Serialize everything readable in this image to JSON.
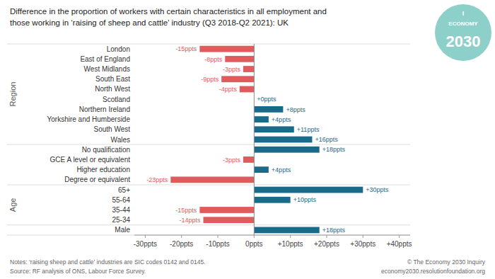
{
  "chart_data": {
    "type": "bar",
    "orientation": "horizontal",
    "title": "Difference in the proportion of workers with certain characteristics in all employment and",
    "subtitle": "those working in ‘raising of sheep and cattle’ industry (Q3 2018-Q2 2021): UK",
    "categories": [
      "London",
      "East of England",
      "West Midlands",
      "South East",
      "North West",
      "Scotland",
      "Northern Ireland",
      "Yorkshire and Humberside",
      "South West",
      "Wales",
      "No qualification",
      "GCE A level or equivalent",
      "Higher education",
      "Degree or equivalent",
      "65+",
      "55-64",
      "35-44",
      "25-34",
      "Male"
    ],
    "values": [
      -15,
      -8,
      -3,
      -9,
      -4,
      0,
      8,
      4,
      11,
      16,
      18,
      -3,
      4,
      -23,
      30,
      10,
      -15,
      -14,
      18
    ],
    "value_labels": [
      "-15ppts",
      "-8ppts",
      "-3ppts",
      "-9ppts",
      "-4ppts",
      "+0ppts",
      "+8ppts",
      "+4ppts",
      "+11ppts",
      "+16ppts",
      "+18ppts",
      "-3ppts",
      "+4ppts",
      "-23ppts",
      "+30ppts",
      "+10ppts",
      "-15ppts",
      "-14ppts",
      "+18ppts"
    ],
    "data_labels": true,
    "colors": [
      "#e05c5c",
      "#e05c5c",
      "#e05c5c",
      "#e05c5c",
      "#e05c5c",
      "#1a6b8a",
      "#1a6b8a",
      "#1a6b8a",
      "#1a6b8a",
      "#1a6b8a",
      "#1a6b8a",
      "#e05c5c",
      "#1a6b8a",
      "#e05c5c",
      "#1a6b8a",
      "#1a6b8a",
      "#e05c5c",
      "#e05c5c",
      "#1a6b8a"
    ],
    "xlim": [
      -33,
      43
    ],
    "xticks": [
      {
        "value": -30,
        "label": "-30ppts"
      },
      {
        "value": -20,
        "label": "-20ppts"
      },
      {
        "value": -10,
        "label": "-10ppts"
      },
      {
        "value": 0,
        "label": "0ppts"
      },
      {
        "value": 10,
        "label": "+10ppts"
      },
      {
        "value": 20,
        "label": "+20ppts"
      },
      {
        "value": 30,
        "label": "+30ppts"
      },
      {
        "value": 40,
        "label": "+40ppts"
      }
    ],
    "grid": false,
    "annotations": [
      "Region",
      "Age",
      "Notes: ‘raising sheep and cattle’ industries are SIC codes 0142 and 0145.",
      "Source: RF analysis of ONS, Labour Force Survey.",
      "© The Economy 2030 Inquiry",
      "economy2030.resolutionfoundation.org",
      "I",
      "ECONOMY",
      "2030"
    ]
  }
}
